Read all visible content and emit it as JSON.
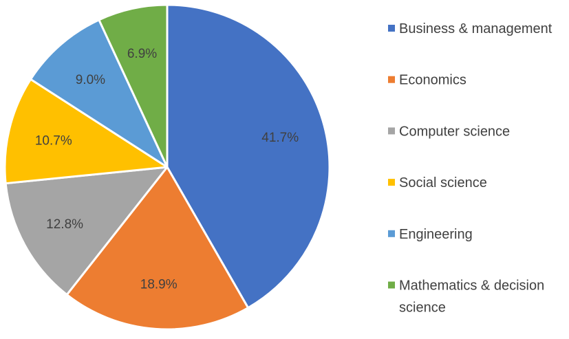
{
  "chart_data": {
    "type": "pie",
    "title": "",
    "legend_position": "right",
    "slices": [
      {
        "label": "Business & management",
        "legend_lines": [
          "Business & management"
        ],
        "value": 41.7,
        "value_label": "41.7%",
        "color": "#4472C4"
      },
      {
        "label": "Economics",
        "legend_lines": [
          "Economics"
        ],
        "value": 18.9,
        "value_label": "18.9%",
        "color": "#ED7D31"
      },
      {
        "label": "Computer science",
        "legend_lines": [
          "Computer science"
        ],
        "value": 12.8,
        "value_label": "12.8%",
        "color": "#A5A5A5"
      },
      {
        "label": "Social science",
        "legend_lines": [
          "Social science"
        ],
        "value": 10.7,
        "value_label": "10.7%",
        "color": "#FFC000"
      },
      {
        "label": "Engineering",
        "legend_lines": [
          "Engineering"
        ],
        "value": 9.0,
        "value_label": "9.0%",
        "color": "#5B9BD5"
      },
      {
        "label": "Mathematics & decision science",
        "legend_lines": [
          "Mathematics & decision",
          "science"
        ],
        "value": 6.9,
        "value_label": "6.9%",
        "color": "#70AD47"
      }
    ]
  }
}
